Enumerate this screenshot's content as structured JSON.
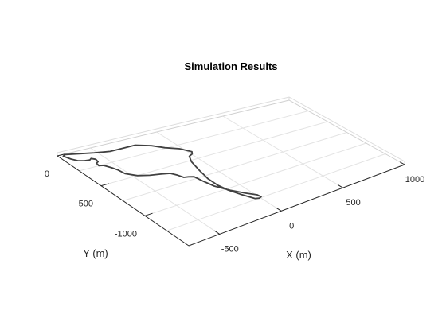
{
  "chart_data": {
    "type": "line",
    "title": "Simulation Results",
    "xlabel": "X (m)",
    "ylabel": "Y (m)",
    "xlim": [
      -750,
      1000
    ],
    "ylim": [
      -1500,
      0
    ],
    "xticks": [
      -500,
      0,
      500,
      1000
    ],
    "xtick_labels": [
      "-500",
      "0",
      "500",
      "1000"
    ],
    "yticks": [
      0,
      -500,
      -1000
    ],
    "ytick_labels": [
      "0",
      "-500",
      "-1000"
    ],
    "grid": true,
    "view": "3-D perspective, track lying in the z = 0 plane",
    "series": [
      {
        "color": "#404040",
        "closed": true,
        "points": [
          [
            -34,
            -1235
          ],
          [
            -9,
            -1250
          ],
          [
            12,
            -1240
          ],
          [
            8,
            -1200
          ],
          [
            -40,
            -1130
          ],
          [
            -95,
            -1030
          ],
          [
            -145,
            -915
          ],
          [
            -165,
            -800
          ],
          [
            -175,
            -720
          ],
          [
            -205,
            -700
          ],
          [
            -235,
            -690
          ],
          [
            -250,
            -640
          ],
          [
            -275,
            -590
          ],
          [
            -330,
            -565
          ],
          [
            -400,
            -540
          ],
          [
            -470,
            -500
          ],
          [
            -520,
            -435
          ],
          [
            -530,
            -365
          ],
          [
            -545,
            -318
          ],
          [
            -572,
            -262
          ],
          [
            -600,
            -250
          ],
          [
            -592,
            -210
          ],
          [
            -572,
            -198
          ],
          [
            -564,
            -160
          ],
          [
            -584,
            -135
          ],
          [
            -602,
            -150
          ],
          [
            -640,
            -142
          ],
          [
            -676,
            -120
          ],
          [
            -700,
            -80
          ],
          [
            -720,
            -22
          ],
          [
            -695,
            -8
          ],
          [
            -600,
            -44
          ],
          [
            -520,
            -74
          ],
          [
            -420,
            -106
          ],
          [
            -320,
            -106
          ],
          [
            -230,
            -106
          ],
          [
            -145,
            -168
          ],
          [
            -90,
            -240
          ],
          [
            -18,
            -305
          ],
          [
            22,
            -390
          ],
          [
            5,
            -420
          ],
          [
            -30,
            -440
          ],
          [
            -65,
            -520
          ],
          [
            -95,
            -665
          ],
          [
            -118,
            -800
          ],
          [
            -120,
            -920
          ],
          [
            -105,
            -1020
          ],
          [
            -75,
            -1120
          ]
        ]
      }
    ]
  }
}
